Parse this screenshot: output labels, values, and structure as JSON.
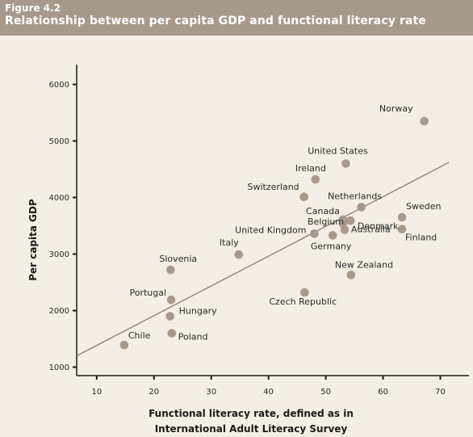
{
  "figure": {
    "label": "Figure 4.2",
    "title": "Relationship between per capita GDP and functional literacy rate"
  },
  "colors": {
    "header_bg": "#a79a8a",
    "background": "#f3efe4",
    "point": "#a89a8a",
    "trendline": "#8a7e70",
    "axis": "#1a1a1a"
  },
  "chart_data": {
    "type": "scatter",
    "xlabel_lines": [
      "Functional literacy rate, defined as in",
      "International Adult Literacy Survey"
    ],
    "ylabel": "Per capita GDP",
    "xlim": [
      6.5,
      75
    ],
    "ylim": [
      850,
      6350
    ],
    "xticks": [
      10,
      20,
      30,
      40,
      50,
      60,
      70
    ],
    "yticks": [
      1000,
      2000,
      3000,
      4000,
      5000,
      6000
    ],
    "grid": false,
    "points": [
      {
        "name": "Norway",
        "x": 67.2,
        "y": 5350
      },
      {
        "name": "United States",
        "x": 53.5,
        "y": 4600
      },
      {
        "name": "Ireland",
        "x": 48.2,
        "y": 4320
      },
      {
        "name": "Switzerland",
        "x": 46.2,
        "y": 4010
      },
      {
        "name": "Netherlands",
        "x": 56.2,
        "y": 3830
      },
      {
        "name": "Sweden",
        "x": 63.3,
        "y": 3650
      },
      {
        "name": "Canada",
        "x": 53.0,
        "y": 3610
      },
      {
        "name": "Belgium",
        "x": 54.3,
        "y": 3590
      },
      {
        "name": "Denmark",
        "x": 53.0,
        "y": 3540
      },
      {
        "name": "Australia",
        "x": 53.3,
        "y": 3430
      },
      {
        "name": "Finland",
        "x": 63.3,
        "y": 3440
      },
      {
        "name": "United Kingdom",
        "x": 48.0,
        "y": 3360
      },
      {
        "name": "Germany",
        "x": 51.2,
        "y": 3330
      },
      {
        "name": "Italy",
        "x": 34.8,
        "y": 2990
      },
      {
        "name": "Slovenia",
        "x": 22.9,
        "y": 2720
      },
      {
        "name": "New Zealand",
        "x": 54.4,
        "y": 2630
      },
      {
        "name": "Czech Republic",
        "x": 46.3,
        "y": 2320
      },
      {
        "name": "Portugal",
        "x": 23.0,
        "y": 2190
      },
      {
        "name": "Hungary",
        "x": 22.8,
        "y": 1900
      },
      {
        "name": "Poland",
        "x": 23.1,
        "y": 1600
      },
      {
        "name": "Chile",
        "x": 14.8,
        "y": 1390
      }
    ],
    "trendline": {
      "x": [
        6.5,
        71.5
      ],
      "y": [
        1200,
        4620
      ]
    }
  }
}
